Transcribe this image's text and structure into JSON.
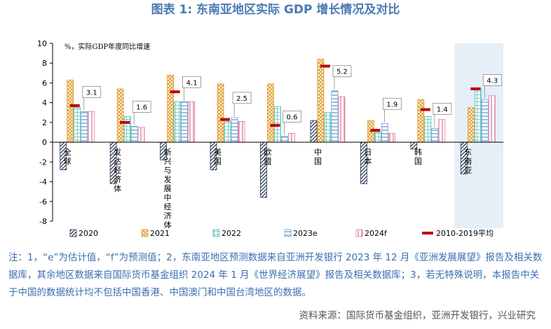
{
  "chart_data": {
    "type": "bar",
    "title": "图表 1: 东南亚地区实际 GDP 增长情况及对比",
    "y_label": "%，实际GDP年度同比增速",
    "categories": [
      "全球",
      "发达经济体",
      "新兴与发展中经济体",
      "美国",
      "欧盟",
      "中国",
      "日本",
      "韩国",
      "东南亚"
    ],
    "series": [
      {
        "name": "2020",
        "color": "#2b3a55",
        "pattern": "diagonal",
        "values": [
          -2.8,
          -4.2,
          -1.8,
          -2.8,
          -5.6,
          2.2,
          -4.2,
          -0.7,
          -3.2
        ]
      },
      {
        "name": "2021",
        "color": "#e0a030",
        "pattern": "cross",
        "values": [
          6.3,
          5.4,
          6.8,
          5.9,
          5.9,
          8.4,
          2.2,
          4.3,
          3.5
        ]
      },
      {
        "name": "2022",
        "color": "#3fb8b0",
        "pattern": "grid",
        "values": [
          3.5,
          2.6,
          4.1,
          2.1,
          3.6,
          3.0,
          1.0,
          2.6,
          5.5
        ]
      },
      {
        "name": "2023e",
        "color": "#6a9fd0",
        "pattern": "horizontal",
        "values": [
          3.1,
          1.6,
          4.1,
          2.5,
          0.6,
          5.2,
          1.9,
          1.4,
          4.3
        ],
        "show_labels": true
      },
      {
        "name": "2024f",
        "color": "#e07a9a",
        "pattern": "vertical",
        "values": [
          3.1,
          1.5,
          4.1,
          2.1,
          0.9,
          4.6,
          0.9,
          2.3,
          4.7
        ]
      },
      {
        "name": "2010-2019平均",
        "color": "#c00000",
        "style": "marker",
        "values": [
          3.7,
          2.0,
          5.1,
          2.3,
          1.7,
          7.7,
          1.2,
          3.3,
          5.4
        ]
      }
    ],
    "highlight": "东南亚",
    "ylim": [
      -8,
      10
    ],
    "yticks": [
      -8,
      -6,
      -4,
      -2,
      0,
      2,
      4,
      6,
      8,
      10
    ]
  },
  "notes": "注：1，“e”为估计值，“f”为预测值；2，东南亚地区预测数据来自亚洲开发银行 2023 年 12 月《亚洲发展展望》报告及相关数据库，其余地区数据来自国际货币基金组织 2024 年 1 月《世界经济展望》报告及相关数据库；3，若无特殊说明，本报告中关于中国的数据统计均不包括中国香港、中国澳门和中国台湾地区的数据。",
  "source": "资料来源：国际货币基金组织，亚洲开发银行，兴业研究"
}
